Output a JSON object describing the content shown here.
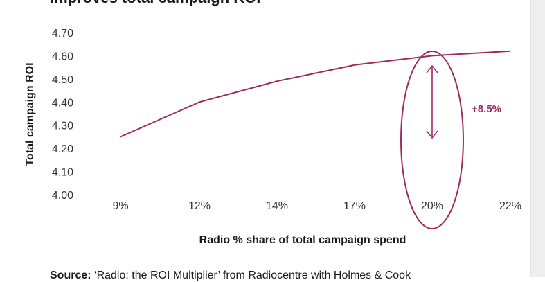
{
  "chart_data": {
    "type": "line",
    "title": "improves total campaign ROI",
    "xlabel": "Radio % share of total campaign spend",
    "ylabel": "Total campaign ROI",
    "categories": [
      "9%",
      "12%",
      "14%",
      "17%",
      "20%",
      "22%"
    ],
    "series": [
      {
        "values": [
          4.25,
          4.4,
          4.49,
          4.56,
          4.6,
          4.62
        ]
      }
    ],
    "ylim": [
      4.0,
      4.7
    ],
    "yticks": [
      4.0,
      4.1,
      4.2,
      4.3,
      4.4,
      4.5,
      4.6,
      4.7
    ],
    "ytick_labels": [
      "4.00",
      "4.10",
      "4.20",
      "4.30",
      "4.40",
      "4.50",
      "4.60",
      "4.70"
    ],
    "grid": false,
    "annotation": {
      "text": "+8.5%",
      "category": "20%"
    },
    "line_color": "#9c2b63"
  },
  "source": {
    "label": "Source:",
    "text": " ‘Radio: the ROI Multiplier’ from Radiocentre with Holmes & Cook"
  }
}
